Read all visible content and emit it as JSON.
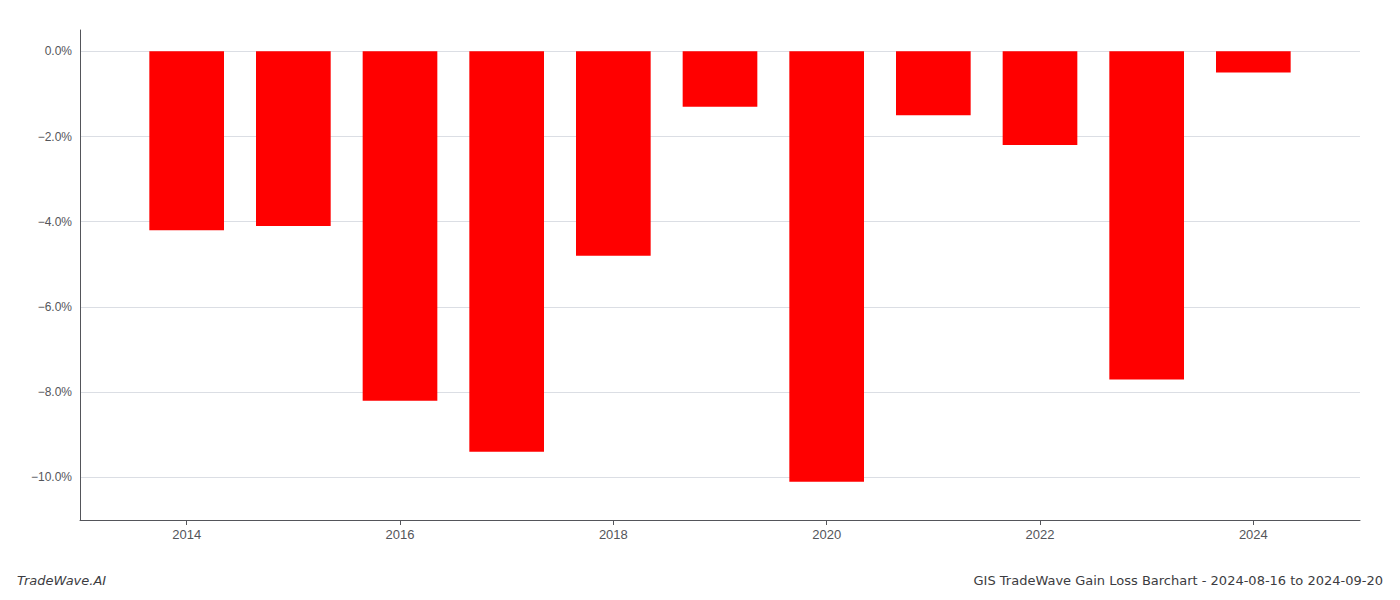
{
  "chart_data": {
    "type": "bar",
    "title": "GIS TradeWave Gain Loss Barchart - 2024-08-16 to 2024-09-20",
    "annotations": [
      "TradeWave.AI"
    ],
    "x": [
      2014,
      2015,
      2016,
      2017,
      2018,
      2019,
      2020,
      2021,
      2022,
      2023,
      2024
    ],
    "values": [
      -4.2,
      -4.1,
      -8.2,
      -9.4,
      -4.8,
      -1.3,
      -10.1,
      -1.5,
      -2.2,
      -7.7,
      -0.5
    ],
    "color": "#ff0000",
    "xlim": [
      2013,
      2025
    ],
    "xticks": [
      2014,
      2016,
      2018,
      2020,
      2022,
      2024
    ],
    "ylim": [
      -11.0,
      0.5
    ],
    "yticks": [
      {
        "value": 0.0,
        "label": "0.0%"
      },
      {
        "value": -2.0,
        "label": "−2.0%"
      },
      {
        "value": -4.0,
        "label": "−4.0%"
      },
      {
        "value": -6.0,
        "label": "−6.0%"
      },
      {
        "value": -8.0,
        "label": "−8.0%"
      },
      {
        "value": -10.0,
        "label": "−10.0%"
      }
    ],
    "grid": true
  }
}
